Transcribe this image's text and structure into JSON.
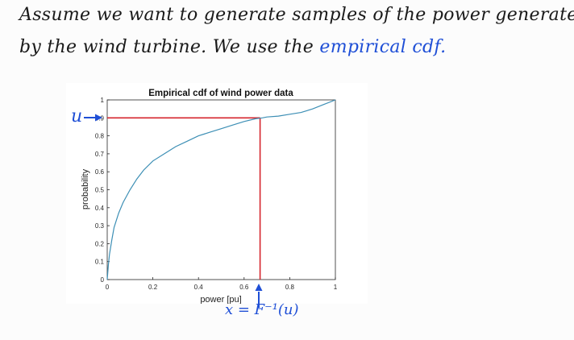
{
  "note": {
    "line1": "Assume we want to generate samples of the power generated",
    "line2_prefix": "by the wind turbine. We use the",
    "line2_emphasis": "empirical cdf."
  },
  "annotations": {
    "u_label": "u",
    "x_label": "x = F⁻¹(u)"
  },
  "colors": {
    "cdf_line": "#3d8fb5",
    "guide_lines": "#d6262e",
    "annotation": "#1f4fd6"
  },
  "chart_data": {
    "type": "line",
    "title": "Empirical cdf of wind power data",
    "xlabel": "power [pu]",
    "ylabel": "probability",
    "xlim": [
      0,
      1
    ],
    "ylim": [
      0,
      1
    ],
    "xticks": [
      "0",
      "0.2",
      "0.4",
      "0.6",
      "0.8",
      "1"
    ],
    "yticks": [
      "0",
      "0.1",
      "0.2",
      "0.3",
      "0.4",
      "0.5",
      "0.6",
      "0.7",
      "0.8",
      "0.9",
      "1"
    ],
    "grid": false,
    "series": [
      {
        "x": [
          0,
          0.005,
          0.01,
          0.02,
          0.03,
          0.05,
          0.07,
          0.1,
          0.13,
          0.16,
          0.2,
          0.25,
          0.3,
          0.35,
          0.4,
          0.45,
          0.5,
          0.55,
          0.6,
          0.65,
          0.68,
          0.7,
          0.75,
          0.8,
          0.85,
          0.9,
          0.95,
          1.0
        ],
        "y": [
          0,
          0.08,
          0.14,
          0.22,
          0.29,
          0.37,
          0.43,
          0.5,
          0.56,
          0.61,
          0.66,
          0.7,
          0.74,
          0.77,
          0.8,
          0.82,
          0.84,
          0.86,
          0.88,
          0.895,
          0.9,
          0.905,
          0.91,
          0.92,
          0.93,
          0.95,
          0.975,
          1.0
        ]
      }
    ],
    "guide": {
      "u": 0.9,
      "x": 0.67
    }
  }
}
